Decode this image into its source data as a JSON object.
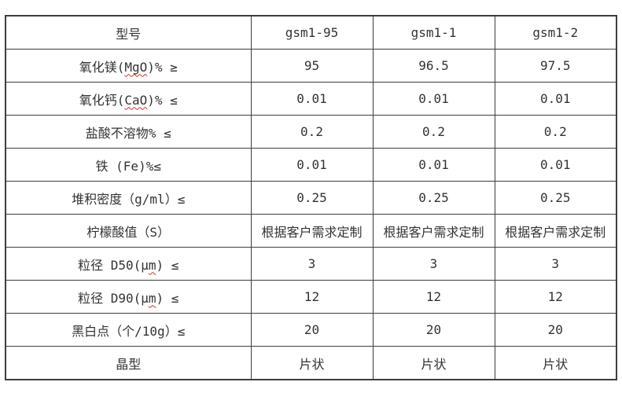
{
  "table": {
    "border_color": "#3d3d3d",
    "text_color": "#333333",
    "wavy_color": "#cc3333",
    "header": {
      "label_parts": [
        {
          "t": "型号"
        }
      ],
      "values": [
        "gsm1-95",
        "gsm1-1",
        "gsm1-2"
      ]
    },
    "rows": [
      {
        "label_parts": [
          {
            "t": "氧化镁("
          },
          {
            "t": "MgO",
            "wavy": true
          },
          {
            "t": ")% ≥"
          }
        ],
        "values": [
          "95",
          "96.5",
          "97.5"
        ]
      },
      {
        "label_parts": [
          {
            "t": "氧化钙("
          },
          {
            "t": "CaO",
            "wavy": true
          },
          {
            "t": ")% ≤"
          }
        ],
        "values": [
          "0.01",
          "0.01",
          "0.01"
        ]
      },
      {
        "label_parts": [
          {
            "t": "盐酸不溶物% ≤"
          }
        ],
        "values": [
          "0.2",
          "0.2",
          "0.2"
        ]
      },
      {
        "label_parts": [
          {
            "t": "铁 (Fe)%≤"
          }
        ],
        "values": [
          "0.01",
          "0.01",
          "0.01"
        ]
      },
      {
        "label_parts": [
          {
            "t": "堆积密度（g/ml）≤"
          }
        ],
        "values": [
          "0.25",
          "0.25",
          "0.25"
        ]
      },
      {
        "label_parts": [
          {
            "t": "柠檬酸值（S）"
          }
        ],
        "values": [
          "根据客户需求定制",
          "根据客户需求定制",
          "根据客户需求定制"
        ]
      },
      {
        "label_parts": [
          {
            "t": "粒径 D50(μ"
          },
          {
            "t": "m",
            "wavy": true
          },
          {
            "t": ") ≤"
          }
        ],
        "values": [
          "3",
          "3",
          "3"
        ]
      },
      {
        "label_parts": [
          {
            "t": "粒径 D90(μ"
          },
          {
            "t": "m",
            "wavy": true
          },
          {
            "t": ") ≤"
          }
        ],
        "values": [
          "12",
          "12",
          "12"
        ]
      },
      {
        "label_parts": [
          {
            "t": "黑白点（个/10g）≤"
          }
        ],
        "values": [
          "20",
          "20",
          "20"
        ]
      },
      {
        "label_parts": [
          {
            "t": "晶型"
          }
        ],
        "values": [
          "片状",
          "片状",
          "片状"
        ]
      }
    ]
  }
}
